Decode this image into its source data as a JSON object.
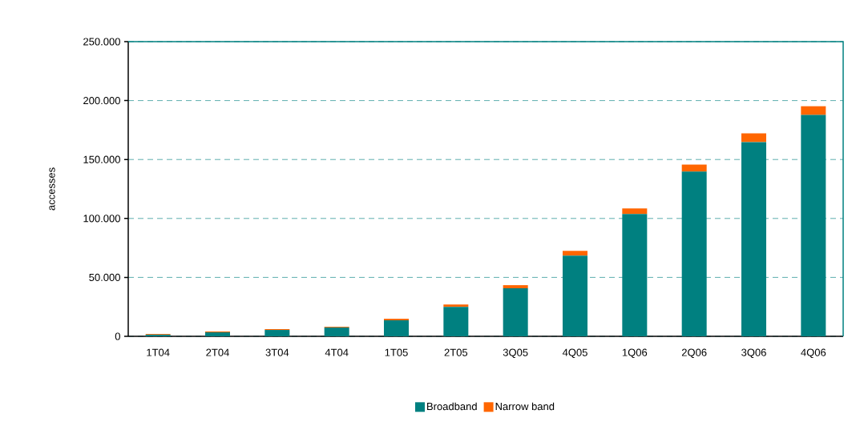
{
  "chart_data": {
    "type": "bar",
    "stacked": true,
    "ylabel": "accesses",
    "categories": [
      "1T04",
      "2T04",
      "3T04",
      "4T04",
      "1T05",
      "2T05",
      "3Q05",
      "4Q05",
      "1Q06",
      "2Q06",
      "3Q06",
      "4Q06"
    ],
    "series": [
      {
        "name": "Broadband",
        "color": "#008080",
        "values": [
          1400,
          3400,
          5400,
          7500,
          13600,
          25000,
          40700,
          68500,
          103800,
          139700,
          164800,
          187800
        ]
      },
      {
        "name": "Narrow band",
        "color": "#ff6600",
        "values": [
          600,
          700,
          700,
          600,
          1300,
          2000,
          2700,
          4000,
          4700,
          6000,
          7400,
          7400
        ]
      }
    ],
    "ylim": [
      0,
      250000
    ],
    "yticks": [
      0,
      {
        "value": 50000,
        "label": "50.000"
      },
      {
        "value": 100000,
        "label": "100.000"
      },
      {
        "value": 150000,
        "label": "150.000"
      },
      {
        "value": 200000,
        "label": "200.000"
      },
      {
        "value": 250000,
        "label": "250.000"
      }
    ],
    "grid": "y",
    "legend": "bottom"
  }
}
